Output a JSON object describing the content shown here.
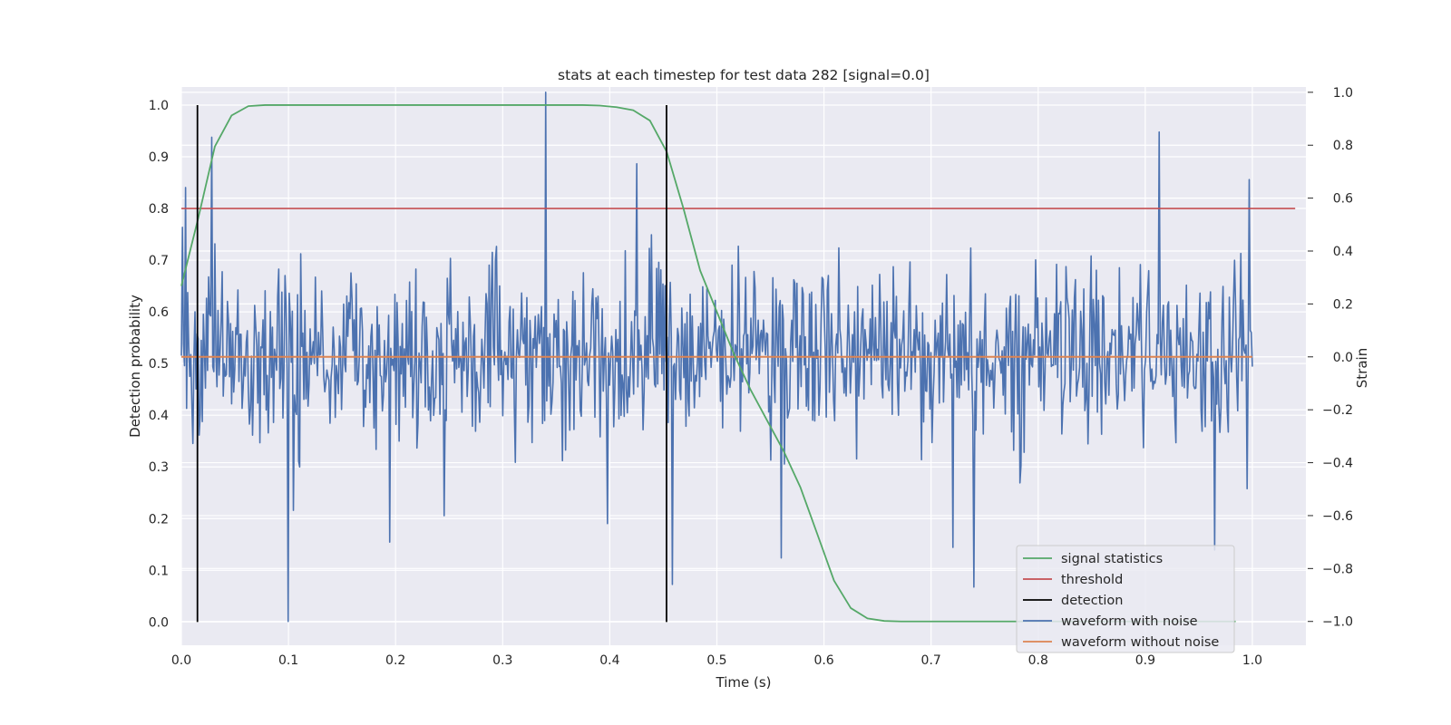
{
  "chart_data": {
    "type": "line",
    "title": "stats at each timestep for test data 282 [signal=0.0]",
    "xlabel": "Time (s)",
    "ylabel_left": "Detection probability",
    "ylabel_right": "Strain",
    "xlim": [
      0.0,
      1.05
    ],
    "ylim_left": [
      -0.045,
      1.035
    ],
    "ylim_right": [
      -1.09,
      1.02
    ],
    "x_ticks": [
      "0.0",
      "0.1",
      "0.2",
      "0.3",
      "0.4",
      "0.5",
      "0.6",
      "0.7",
      "0.8",
      "0.9",
      "1.0"
    ],
    "y_ticks_left": [
      "0.0",
      "0.1",
      "0.2",
      "0.3",
      "0.4",
      "0.5",
      "0.6",
      "0.7",
      "0.8",
      "0.9",
      "1.0"
    ],
    "y_ticks_right": [
      "−1.0",
      "−0.8",
      "−0.6",
      "−0.4",
      "−0.2",
      "0.0",
      "0.2",
      "0.4",
      "0.6",
      "0.8",
      "1.0"
    ],
    "grid": true,
    "legend_position": "bottom-right",
    "colors": {
      "signal_statistics": "#55a868",
      "threshold": "#c44e52",
      "detection": "#000000",
      "waveform_with_noise": "#4c72b0",
      "waveform_without_noise": "#dd8452",
      "background": "#eaeaf2",
      "grid": "#ffffff"
    },
    "legend": [
      {
        "label": "signal statistics",
        "color": "#55a868"
      },
      {
        "label": "threshold",
        "color": "#c44e52"
      },
      {
        "label": "detection",
        "color": "#000000"
      },
      {
        "label": "waveform with noise",
        "color": "#4c72b0"
      },
      {
        "label": "waveform without noise",
        "color": "#dd8452"
      }
    ],
    "series": [
      {
        "name": "signal statistics",
        "axis": "left",
        "x": [
          0.0,
          0.0156,
          0.0313,
          0.0469,
          0.0625,
          0.0781,
          0.0938,
          0.1094,
          0.125,
          0.2,
          0.3,
          0.375,
          0.3906,
          0.4063,
          0.4219,
          0.4375,
          0.4531,
          0.4688,
          0.4844,
          0.5,
          0.5156,
          0.5313,
          0.5469,
          0.5625,
          0.5781,
          0.5938,
          0.6094,
          0.625,
          0.6406,
          0.6563,
          0.6719,
          0.7,
          0.8,
          0.9,
          0.9844
        ],
        "y": [
          0.65,
          0.78,
          0.92,
          0.98,
          0.998,
          1.0,
          1.0,
          1.0,
          1.0,
          1.0,
          1.0,
          1.0,
          0.999,
          0.996,
          0.99,
          0.97,
          0.91,
          0.8,
          0.68,
          0.6,
          0.52,
          0.45,
          0.39,
          0.33,
          0.26,
          0.17,
          0.08,
          0.027,
          0.007,
          0.002,
          0.001,
          0.001,
          0.001,
          0.001,
          0.001
        ]
      },
      {
        "name": "threshold",
        "axis": "left",
        "x": [
          0.0,
          1.04
        ],
        "y": [
          0.8,
          0.8
        ]
      },
      {
        "name": "detection",
        "axis": "left",
        "x_values": [
          0.015,
          0.453
        ],
        "y_range": [
          0.0,
          1.0
        ]
      },
      {
        "name": "waveform with noise",
        "axis": "right",
        "x_range": [
          0.0,
          1.0
        ],
        "peaks": [
          {
            "x": 0.004,
            "y": 0.64
          },
          {
            "x": 0.028,
            "y": 0.83
          },
          {
            "x": 0.1,
            "y": -1.0
          },
          {
            "x": 0.105,
            "y": -0.58
          },
          {
            "x": 0.195,
            "y": -0.7
          },
          {
            "x": 0.245,
            "y": -0.6
          },
          {
            "x": 0.34,
            "y": 1.0
          },
          {
            "x": 0.398,
            "y": -0.63
          },
          {
            "x": 0.425,
            "y": 0.73
          },
          {
            "x": 0.458,
            "y": -0.86
          },
          {
            "x": 0.56,
            "y": -0.76
          },
          {
            "x": 0.72,
            "y": -0.72
          },
          {
            "x": 0.74,
            "y": -0.87
          },
          {
            "x": 0.913,
            "y": 0.85
          },
          {
            "x": 0.965,
            "y": -0.73
          },
          {
            "x": 0.997,
            "y": 0.67
          }
        ]
      },
      {
        "name": "waveform without noise",
        "axis": "right",
        "x": [
          0.0,
          1.0
        ],
        "y": [
          0.0,
          0.0
        ]
      }
    ]
  }
}
